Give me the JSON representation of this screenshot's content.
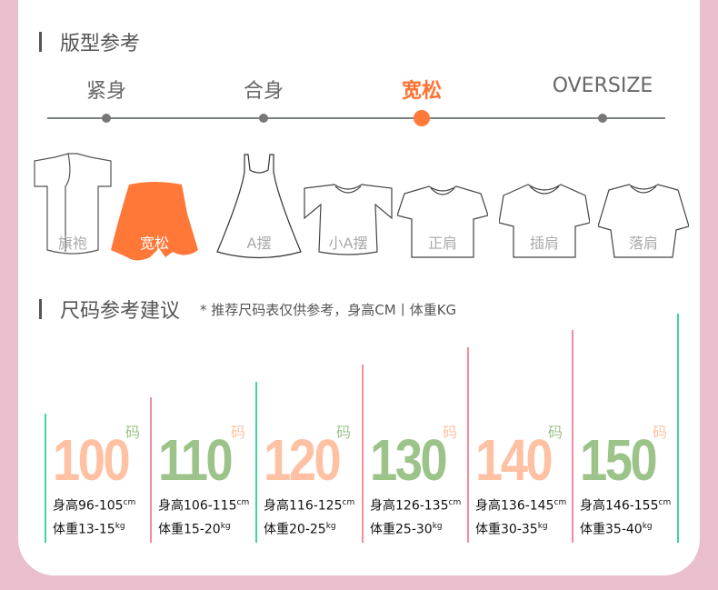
{
  "fit_section": {
    "title": "版型参考",
    "scale": [
      {
        "label": "紧身",
        "active": false
      },
      {
        "label": "合身",
        "active": false
      },
      {
        "label": "宽松",
        "active": true
      },
      {
        "label": "OVERSIZE",
        "active": false
      }
    ],
    "garments": [
      {
        "label": "旗袍",
        "icon": "qipao-icon"
      },
      {
        "label": "宽松",
        "icon": "loose-icon",
        "active": true
      },
      {
        "label": "A摆",
        "icon": "a-line-dress-icon"
      },
      {
        "label": "小A摆",
        "icon": "ruffle-top-icon"
      },
      {
        "label": "正肩",
        "icon": "tshirt-icon"
      },
      {
        "label": "插肩",
        "icon": "raglan-icon"
      },
      {
        "label": "落肩",
        "icon": "drop-shoulder-icon"
      }
    ]
  },
  "size_section": {
    "title": "尺码参考建议",
    "note": "* 推荐尺码表仅供参考，身高CM丨体重KG",
    "unit": "码",
    "height_unit": "cm",
    "weight_unit": "kg",
    "sizes": [
      {
        "size": "100",
        "height": "身高96-105",
        "weight": "体重13-15",
        "color": "#ffc1a3"
      },
      {
        "size": "110",
        "height": "身高106-115",
        "weight": "体重15-20",
        "color": "#9cc389"
      },
      {
        "size": "120",
        "height": "身高116-125",
        "weight": "体重20-25",
        "color": "#ffc1a3"
      },
      {
        "size": "130",
        "height": "身高126-135",
        "weight": "体重25-30",
        "color": "#9cc389"
      },
      {
        "size": "140",
        "height": "身高136-145",
        "weight": "体重30-35",
        "color": "#ffc1a3"
      },
      {
        "size": "150",
        "height": "身高146-155",
        "weight": "体重35-40",
        "color": "#9cc389"
      }
    ]
  },
  "colors": {
    "accent": "#ff7133",
    "background": "#e9bfcd",
    "green_line": "#3fd4a0",
    "red_line": "#f28d99"
  }
}
